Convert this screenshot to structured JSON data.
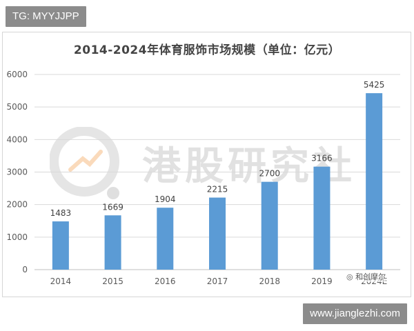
{
  "tags": {
    "top_left": "TG: MYYJJPP",
    "bottom_right": "www.jianglezhi.com"
  },
  "watermark": {
    "text": "港股研究社",
    "wechat_account": "和创摩尔"
  },
  "colors": {
    "bar": "#5b9bd5",
    "grid": "#d9d9d9",
    "axis_text": "#595959",
    "tag_bg": "#8c8c8c"
  },
  "chart_data": {
    "type": "bar",
    "title": "2014-2024年体育服饰市场规模（单位：亿元）",
    "categories": [
      "2014",
      "2015",
      "2016",
      "2017",
      "2018",
      "2019",
      "2024E"
    ],
    "values": [
      1483,
      1669,
      1904,
      2215,
      2700,
      3166,
      5425
    ],
    "data_labels": [
      "1483",
      "1669",
      "1904",
      "2215",
      "2700",
      "3166",
      "5425"
    ],
    "y_ticks": [
      0,
      1000,
      2000,
      3000,
      4000,
      5000,
      6000
    ],
    "ylim": [
      0,
      6000
    ],
    "grid": true,
    "legend": "none"
  }
}
